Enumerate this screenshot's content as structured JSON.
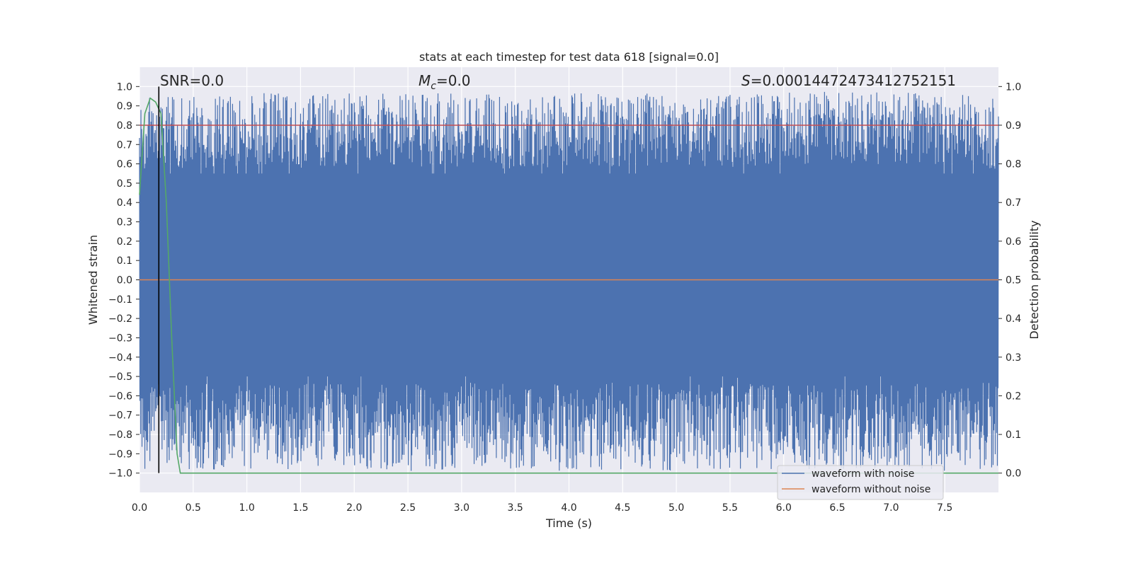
{
  "chart_data": {
    "type": "line",
    "title": "stats at each timestep for test data 618 [signal=0.0]",
    "xlabel": "Time (s)",
    "ylabel_left": "Whitened strain",
    "ylabel_right": "Detection probability",
    "xlim": [
      0.0,
      8.0
    ],
    "ylim_left": [
      -1.1,
      1.1
    ],
    "ylim_right": [
      -0.05,
      1.05
    ],
    "x_ticks": [
      "0.0",
      "0.5",
      "1.0",
      "1.5",
      "2.0",
      "2.5",
      "3.0",
      "3.5",
      "4.0",
      "4.5",
      "5.0",
      "5.5",
      "6.0",
      "6.5",
      "7.0",
      "7.5"
    ],
    "y_ticks_left": [
      "1.0",
      "0.9",
      "0.8",
      "0.7",
      "0.6",
      "0.5",
      "0.4",
      "0.3",
      "0.2",
      "0.1",
      "0.0",
      "−0.1",
      "−0.2",
      "−0.3",
      "−0.4",
      "−0.5",
      "−0.6",
      "−0.7",
      "−0.8",
      "−0.9",
      "−1.0"
    ],
    "y_ticks_right": [
      "1.0",
      "0.9",
      "0.8",
      "0.7",
      "0.6",
      "0.5",
      "0.4",
      "0.3",
      "0.2",
      "0.1",
      "0.0"
    ],
    "grid": true,
    "legend_position": "bottom-right",
    "annotations": {
      "snr": "SNR=0.0",
      "mc_symbol": "M",
      "mc_sub": "c",
      "mc_value": "=0.0",
      "s_symbol": "S",
      "s_value": "=0.00014472473412752151"
    },
    "series": [
      {
        "name": "waveform with noise",
        "axis": "left",
        "color": "#4c72b0",
        "description": "dense noisy whitened strain filling roughly -1.0 to 1.0 across 0-8 s",
        "envelope_x": [
          0.0,
          0.5,
          1.0,
          1.5,
          2.0,
          2.5,
          3.0,
          3.5,
          4.0,
          4.5,
          5.0,
          5.5,
          6.0,
          6.5,
          7.0,
          7.5,
          8.0
        ],
        "envelope_upper": [
          0.95,
          0.95,
          0.97,
          0.96,
          0.97,
          0.96,
          0.97,
          0.95,
          0.97,
          0.96,
          0.97,
          0.96,
          0.98,
          0.97,
          0.98,
          0.97,
          0.95
        ],
        "envelope_lower": [
          -0.98,
          -0.99,
          -0.98,
          -0.99,
          -0.98,
          -0.99,
          -0.98,
          -0.99,
          -0.99,
          -0.98,
          -0.99,
          -0.98,
          -0.99,
          -0.99,
          -0.98,
          -0.99,
          -0.98
        ]
      },
      {
        "name": "waveform without noise",
        "axis": "left",
        "color": "#dd8452",
        "x": [
          0.0,
          8.0
        ],
        "y": [
          0.0,
          0.0
        ]
      },
      {
        "name": "detection probability",
        "axis": "right",
        "color": "#55a868",
        "x": [
          0.0,
          0.05,
          0.1,
          0.15,
          0.2,
          0.25,
          0.3,
          0.35,
          0.38,
          0.45,
          1.0,
          2.0,
          4.0,
          6.0,
          8.0
        ],
        "y": [
          0.72,
          0.93,
          0.97,
          0.96,
          0.93,
          0.7,
          0.35,
          0.05,
          0.0,
          0.0,
          0.0,
          0.0,
          0.0,
          0.0,
          0.0
        ]
      }
    ],
    "threshold_line": {
      "axis": "right",
      "y": 0.9,
      "color": "#c44e52"
    },
    "marker_vline": {
      "x": 0.18,
      "color": "#000000"
    }
  }
}
